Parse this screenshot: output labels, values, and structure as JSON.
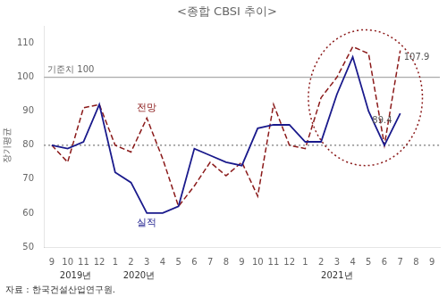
{
  "chart_data": {
    "type": "line",
    "title": "<종합 CBSI 추이>",
    "source": "자료 : 한국건설산업연구원.",
    "categories": [
      "9",
      "10",
      "11",
      "12",
      "1",
      "2",
      "3",
      "4",
      "5",
      "6",
      "7",
      "8",
      "9",
      "10",
      "11",
      "12",
      "1",
      "2",
      "3",
      "4",
      "5",
      "6",
      "7",
      "8",
      "9"
    ],
    "series": [
      {
        "name": "실적",
        "color": "#1a1a8c",
        "line_style": "solid",
        "values": [
          80,
          79,
          81,
          92,
          72,
          69,
          60,
          60,
          62,
          79,
          77,
          75,
          74,
          85,
          86,
          86,
          81,
          81,
          95,
          106,
          90,
          80,
          89.4,
          null,
          null
        ]
      },
      {
        "name": "전망",
        "color": "#8b1a1a",
        "line_style": "dashed",
        "values": [
          80,
          75,
          91,
          92,
          80,
          78,
          88,
          76,
          62,
          68,
          75,
          71,
          75,
          65,
          92,
          80,
          79,
          94,
          100,
          109,
          107,
          80,
          107.9,
          null,
          null
        ]
      }
    ],
    "ylim": [
      50,
      115
    ],
    "yticks": [
      50,
      60,
      70,
      80,
      90,
      100,
      110
    ],
    "grid": false,
    "reference_lines": [
      {
        "value": 100,
        "label": "기준치 100",
        "color": "#aaaaaa",
        "line_style": "solid"
      },
      {
        "value": 80,
        "label": "장기평균",
        "color": "#777777",
        "line_style": "dotted"
      }
    ],
    "annotations": [
      {
        "text": "89.4",
        "x": 20,
        "y": 89.4
      },
      {
        "text": "107.9",
        "x": 22,
        "y": 107.9
      }
    ],
    "x_group_labels": [
      {
        "text": "2019년",
        "x": 1.5
      },
      {
        "text": "2020년",
        "x": 5.5
      },
      {
        "text": "2021년",
        "x": 18.0
      }
    ],
    "highlight": {
      "shape": "ellipse",
      "x": 19.8,
      "y": 94,
      "width": 7.2,
      "height": 40,
      "color": "#8b1a1a",
      "line_style": "dotted"
    }
  }
}
